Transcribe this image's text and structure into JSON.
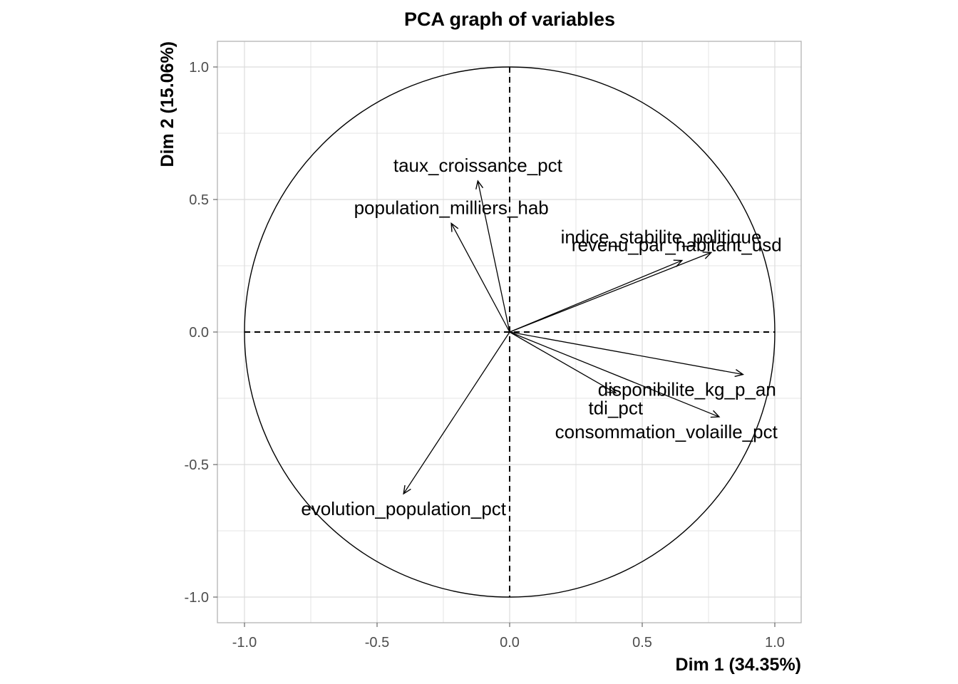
{
  "chart_data": {
    "type": "scatter",
    "subtype": "pca-correlation-circle",
    "title": "PCA graph of variables",
    "xlabel": "Dim 1 (34.35%)",
    "ylabel": "Dim 2 (15.06%)",
    "xlim": [
      -1.1,
      1.1
    ],
    "ylim": [
      -1.1,
      1.1
    ],
    "x_ticks": [
      -1.0,
      -0.5,
      0.0,
      0.5,
      1.0
    ],
    "x_tick_labels": [
      "-1.0",
      "-0.5",
      "0.0",
      "0.5",
      "1.0"
    ],
    "y_ticks": [
      -1.0,
      -0.5,
      0.0,
      0.5,
      1.0
    ],
    "y_tick_labels": [
      "-1.0",
      "-0.5",
      "0.0",
      "0.5",
      "1.0"
    ],
    "grid": true,
    "unit_circle": true,
    "reference_lines": "dashed lines at x=0 and y=0",
    "variables": [
      {
        "name": "taux_croissance_pct",
        "x": -0.12,
        "y": 0.57
      },
      {
        "name": "population_milliers_hab",
        "x": -0.22,
        "y": 0.41
      },
      {
        "name": "indice_stabilite_politique",
        "x": 0.76,
        "y": 0.3
      },
      {
        "name": "revenu_par_habitant_usd",
        "x": 0.65,
        "y": 0.27
      },
      {
        "name": "disponibilite_kg_p_an",
        "x": 0.88,
        "y": -0.16
      },
      {
        "name": "tdi_pct",
        "x": 0.4,
        "y": -0.23
      },
      {
        "name": "consommation_volaille_pct",
        "x": 0.79,
        "y": -0.32
      },
      {
        "name": "evolution_population_pct",
        "x": -0.4,
        "y": -0.61
      }
    ]
  }
}
